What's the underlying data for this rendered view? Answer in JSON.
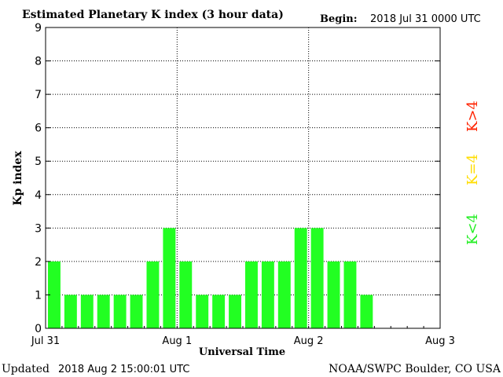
{
  "header": {
    "title": "Estimated Planetary K index (3 hour data)",
    "begin_label": "Begin:",
    "begin_value": "2018 Jul 31 0000 UTC"
  },
  "footer": {
    "updated_label": "Updated",
    "updated_value": "2018 Aug  2 15:00:01 UTC",
    "source": "NOAA/SWPC Boulder, CO USA"
  },
  "legend": {
    "k_gt_4": {
      "text": "K>4",
      "color": "#ff2200"
    },
    "k_eq_4": {
      "text": "K=4",
      "color": "#ffdd00"
    },
    "k_lt_4": {
      "text": "K<4",
      "color": "#22ee22"
    }
  },
  "chart_data": {
    "type": "bar",
    "title": "Estimated Planetary K index (3 hour data)",
    "xlabel": "Universal Time",
    "ylabel": "Kp index",
    "ylim": [
      0,
      9
    ],
    "yticks": [
      0,
      1,
      2,
      3,
      4,
      5,
      6,
      7,
      8,
      9
    ],
    "xtick_labels": [
      "Jul 31",
      "Aug 1",
      "Aug 2",
      "Aug 3"
    ],
    "grid": true,
    "bar_color": "#22ff22",
    "slots": 24,
    "values": [
      2,
      1,
      1,
      1,
      1,
      1,
      2,
      3,
      2,
      1,
      1,
      1,
      2,
      2,
      2,
      3,
      3,
      2,
      2,
      1
    ]
  }
}
